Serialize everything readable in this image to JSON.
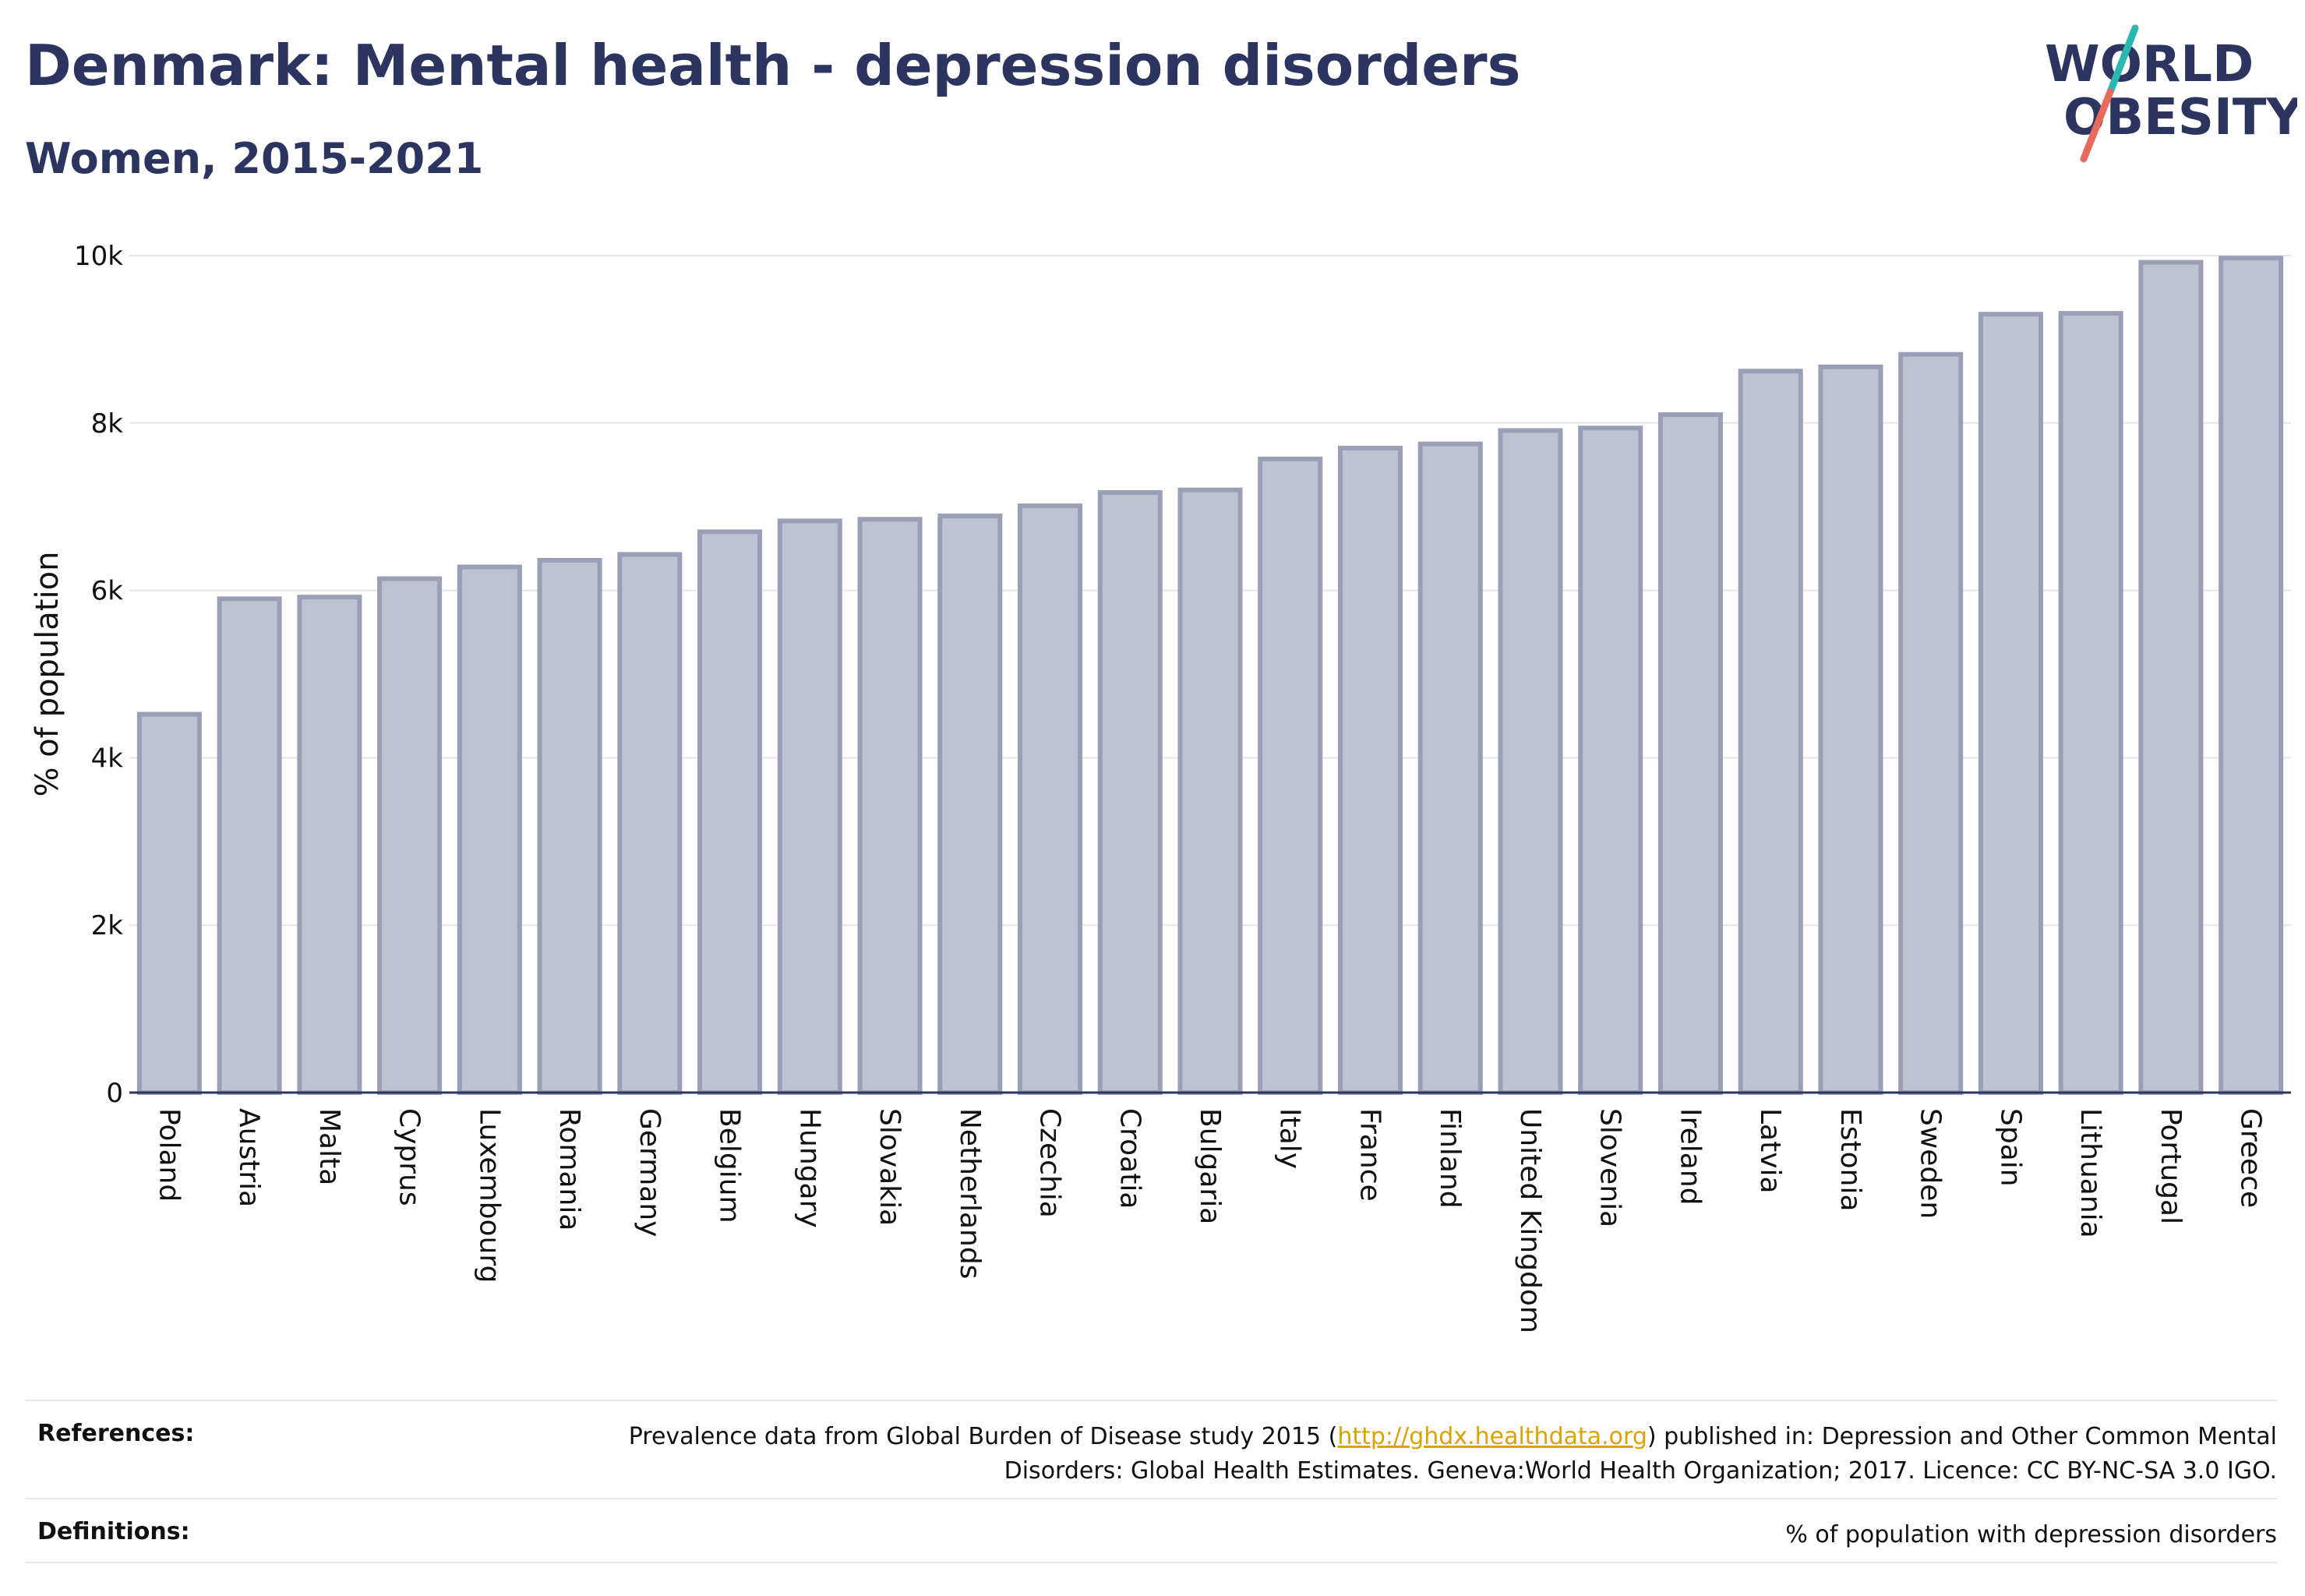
{
  "header": {
    "title": "Denmark: Mental health - depression disorders",
    "subtitle": "Women, 2015-2021"
  },
  "logo": {
    "text_line1": "WORLD",
    "text_line2": "OBESITY",
    "colors": {
      "text": "#2b3560",
      "slash_top": "#2ab7b0",
      "slash_bottom": "#e86a5c"
    }
  },
  "chart_data": {
    "type": "bar",
    "ylabel": "% of population",
    "ylim": [
      0,
      10000
    ],
    "yticks": [
      0,
      2000,
      4000,
      6000,
      8000,
      10000
    ],
    "ytick_labels": [
      "0",
      "2k",
      "4k",
      "6k",
      "8k",
      "10k"
    ],
    "grid": true,
    "bar_color": "#bfc2d0",
    "bar_edge_color": "#9a9fb8",
    "categories": [
      "Poland",
      "Austria",
      "Malta",
      "Cyprus",
      "Luxembourg",
      "Romania",
      "Germany",
      "Belgium",
      "Hungary",
      "Slovakia",
      "Netherlands",
      "Czechia",
      "Croatia",
      "Bulgaria",
      "Italy",
      "France",
      "Finland",
      "United Kingdom",
      "Slovenia",
      "Ireland",
      "Latvia",
      "Estonia",
      "Sweden",
      "Spain",
      "Lithuania",
      "Portugal",
      "Greece"
    ],
    "values": [
      4520,
      5900,
      5920,
      6140,
      6280,
      6360,
      6430,
      6700,
      6830,
      6850,
      6890,
      7010,
      7170,
      7200,
      7570,
      7700,
      7750,
      7910,
      7940,
      8100,
      8620,
      8670,
      8820,
      9300,
      9310,
      9920,
      9970
    ]
  },
  "footer": {
    "references_label": "References:",
    "references_text_before": "Prevalence data from Global Burden of Disease study 2015 (",
    "references_link": "http://ghdx.healthdata.org",
    "references_text_after": ") published in: Depression and Other Common Mental Disorders: Global Health Estimates. Geneva:World Health Organization; 2017. Licence: CC BY-NC-SA 3.0 IGO.",
    "definitions_label": "Definitions:",
    "definitions_text": "% of population with depression disorders"
  }
}
